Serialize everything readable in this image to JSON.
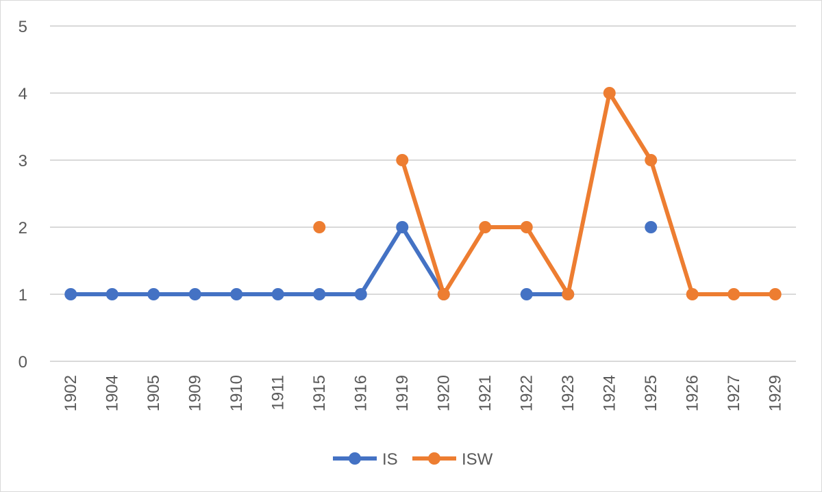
{
  "chart_data": {
    "type": "line",
    "title": "",
    "xlabel": "",
    "ylabel": "",
    "categories": [
      "1902",
      "1904",
      "1905",
      "1909",
      "1910",
      "1911",
      "1915",
      "1916",
      "1919",
      "1920",
      "1921",
      "1922",
      "1923",
      "1924",
      "1925",
      "1926",
      "1927",
      "1929"
    ],
    "ylim": [
      0,
      5
    ],
    "yticks": [
      "0",
      "1",
      "2",
      "3",
      "4",
      "5"
    ],
    "grid": true,
    "legend_position": "bottom",
    "series": [
      {
        "name": "IS",
        "color": "#4472c4",
        "values": [
          1,
          1,
          1,
          1,
          1,
          1,
          1,
          1,
          2,
          1,
          null,
          1,
          1,
          null,
          2,
          null,
          null,
          null
        ]
      },
      {
        "name": "ISW",
        "color": "#ed7d31",
        "values": [
          null,
          null,
          null,
          null,
          null,
          null,
          2,
          null,
          3,
          1,
          2,
          2,
          1,
          4,
          3,
          1,
          1,
          1
        ]
      }
    ]
  }
}
